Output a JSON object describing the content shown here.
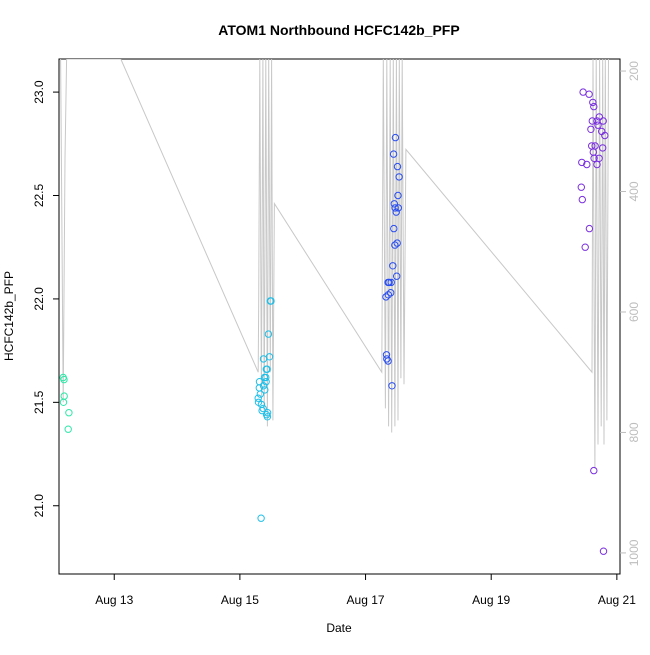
{
  "chart_data": {
    "type": "scatter",
    "title": "ATOM1 Northbound HCFC142b_PFP",
    "xlabel": "Date",
    "ylabel": "HCFC142b_PFP",
    "x_unit": "hours since Aug 13 00:00",
    "xlim": [
      -21.1,
      193.2
    ],
    "ylim": [
      20.67,
      23.16
    ],
    "y_ticks": [
      21.0,
      21.5,
      22.0,
      22.5,
      23.0
    ],
    "x_ticks": [
      {
        "label": "Aug 13",
        "value": 0
      },
      {
        "label": "Aug 15",
        "value": 48
      },
      {
        "label": "Aug 17",
        "value": 96
      },
      {
        "label": "Aug 19",
        "value": 144
      },
      {
        "label": "Aug 21",
        "value": 192
      }
    ],
    "right_axis": {
      "label": "",
      "ylim": [
        1035,
        180
      ],
      "ticks": [
        200,
        400,
        600,
        800,
        1000
      ],
      "color": "#bdbdbd"
    },
    "grid": false,
    "legend": "none",
    "series": [
      {
        "color": "#2ee8a8",
        "points": [
          [
            -19.5,
            21.62
          ],
          [
            -19.2,
            21.61
          ],
          [
            -19.1,
            21.53
          ],
          [
            -19.4,
            21.5
          ],
          [
            -17.3,
            21.45
          ],
          [
            -17.6,
            21.37
          ]
        ]
      },
      {
        "color": "#1fbfe8",
        "points": [
          [
            55.5,
            21.6
          ],
          [
            55.4,
            21.57
          ],
          [
            55.8,
            21.54
          ],
          [
            55.0,
            21.52
          ],
          [
            55.1,
            21.5
          ],
          [
            56.2,
            21.49
          ],
          [
            56.9,
            21.47
          ],
          [
            57.0,
            21.71
          ],
          [
            57.4,
            21.62
          ],
          [
            57.9,
            21.62
          ],
          [
            58.0,
            21.6
          ],
          [
            58.1,
            21.66
          ],
          [
            58.4,
            21.66
          ],
          [
            58.9,
            21.83
          ],
          [
            59.3,
            21.72
          ],
          [
            59.9,
            21.99
          ],
          [
            59.6,
            21.99
          ],
          [
            57.5,
            21.56
          ],
          [
            58.2,
            21.44
          ],
          [
            58.5,
            21.43
          ],
          [
            58.6,
            21.45
          ],
          [
            56.5,
            21.46
          ],
          [
            57.0,
            21.58
          ],
          [
            56.1,
            20.94
          ]
        ]
      },
      {
        "color": "#2a4ef0",
        "points": [
          [
            103.8,
            22.01
          ],
          [
            104.7,
            22.02
          ],
          [
            105.6,
            22.03
          ],
          [
            105.0,
            22.08
          ],
          [
            104.6,
            22.08
          ],
          [
            105.8,
            22.08
          ],
          [
            106.4,
            22.16
          ],
          [
            107.9,
            22.11
          ],
          [
            107.2,
            22.26
          ],
          [
            108.1,
            22.27
          ],
          [
            106.8,
            22.34
          ],
          [
            107.7,
            22.42
          ],
          [
            108.5,
            22.44
          ],
          [
            107.3,
            22.44
          ],
          [
            107.0,
            22.46
          ],
          [
            108.4,
            22.5
          ],
          [
            108.8,
            22.59
          ],
          [
            108.2,
            22.64
          ],
          [
            106.7,
            22.7
          ],
          [
            107.4,
            22.78
          ],
          [
            104.0,
            21.73
          ],
          [
            104.6,
            21.7
          ],
          [
            104.1,
            21.71
          ],
          [
            106.1,
            21.58
          ]
        ]
      },
      {
        "color": "#7a2fe0",
        "points": [
          [
            179.1,
            23.0
          ],
          [
            181.4,
            22.99
          ],
          [
            182.8,
            22.95
          ],
          [
            183.2,
            22.93
          ],
          [
            184.4,
            22.86
          ],
          [
            185.3,
            22.88
          ],
          [
            184.8,
            22.84
          ],
          [
            186.8,
            22.86
          ],
          [
            186.2,
            22.81
          ],
          [
            187.4,
            22.79
          ],
          [
            182.6,
            22.86
          ],
          [
            183.7,
            22.74
          ],
          [
            182.4,
            22.74
          ],
          [
            183.0,
            22.71
          ],
          [
            183.3,
            22.68
          ],
          [
            184.4,
            22.65
          ],
          [
            185.2,
            22.68
          ],
          [
            186.6,
            22.73
          ],
          [
            182.1,
            22.82
          ],
          [
            180.5,
            22.65
          ],
          [
            178.6,
            22.66
          ],
          [
            178.4,
            22.54
          ],
          [
            181.5,
            22.34
          ],
          [
            178.8,
            22.48
          ],
          [
            179.9,
            22.25
          ],
          [
            183.2,
            21.17
          ],
          [
            186.9,
            20.78
          ]
        ]
      }
    ],
    "line_color": "#c8c8c8",
    "line_points": [
      [
        -20.5,
        180
      ],
      [
        -20.2,
        345
      ],
      [
        -19.5,
        750
      ],
      [
        -18.8,
        345
      ],
      [
        -18.2,
        180
      ],
      [
        2.5,
        180
      ],
      [
        55.0,
        700
      ],
      [
        55.2,
        580
      ],
      [
        55.6,
        180
      ],
      [
        56.2,
        740
      ],
      [
        56.8,
        180
      ],
      [
        57.3,
        770
      ],
      [
        57.9,
        180
      ],
      [
        58.5,
        790
      ],
      [
        59.0,
        180
      ],
      [
        59.6,
        700
      ],
      [
        60.1,
        180
      ],
      [
        60.6,
        780
      ],
      [
        61.2,
        420
      ],
      [
        102.2,
        700
      ],
      [
        102.8,
        180
      ],
      [
        103.6,
        760
      ],
      [
        104.1,
        180
      ],
      [
        104.8,
        790
      ],
      [
        105.4,
        180
      ],
      [
        106.0,
        800
      ],
      [
        106.6,
        180
      ],
      [
        107.2,
        790
      ],
      [
        107.8,
        180
      ],
      [
        108.4,
        780
      ],
      [
        108.9,
        180
      ],
      [
        109.5,
        710
      ],
      [
        110.0,
        180
      ],
      [
        110.7,
        720
      ],
      [
        111.4,
        330
      ],
      [
        182.5,
        700
      ],
      [
        182.9,
        180
      ],
      [
        183.6,
        860
      ],
      [
        184.1,
        180
      ],
      [
        184.8,
        820
      ],
      [
        185.4,
        180
      ],
      [
        186.0,
        790
      ],
      [
        186.6,
        180
      ],
      [
        187.1,
        820
      ],
      [
        187.6,
        180
      ],
      [
        188.2,
        780
      ],
      [
        188.8,
        180
      ]
    ]
  }
}
